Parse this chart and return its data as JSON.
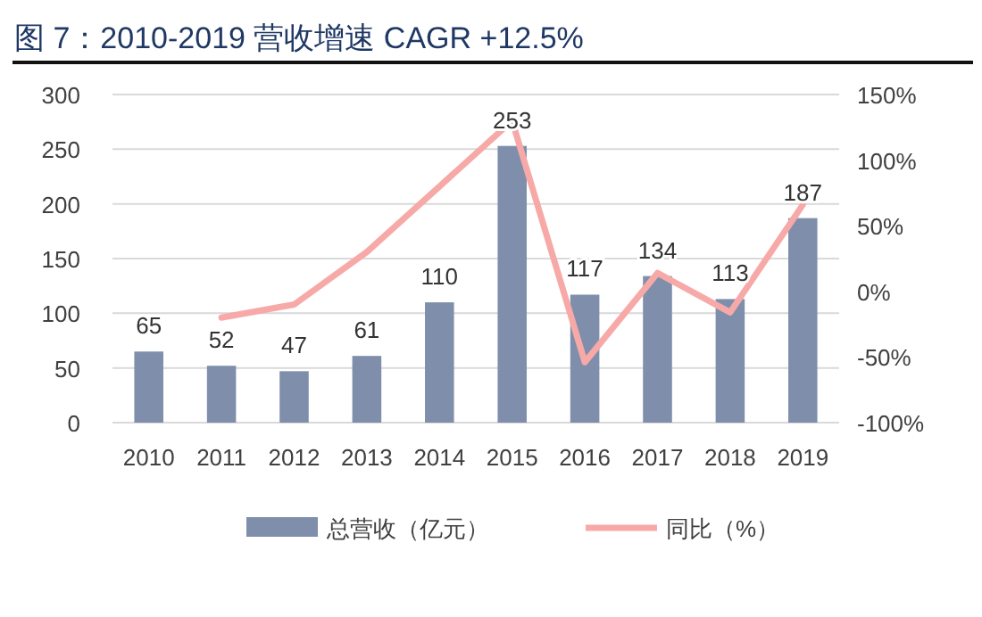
{
  "chart_data": {
    "type": "bar",
    "title": "图  7：2010-2019 营收增速  CAGR +12.5%",
    "categories": [
      "2010",
      "2011",
      "2012",
      "2013",
      "2014",
      "2015",
      "2016",
      "2017",
      "2018",
      "2019"
    ],
    "series": [
      {
        "name": "总营收（亿元）",
        "color": "#7f8fab",
        "values": [
          65,
          52,
          47,
          61,
          110,
          253,
          117,
          134,
          113,
          187
        ],
        "value_labels": [
          "65",
          "52",
          "47",
          "61",
          "110",
          "253",
          "117",
          "134",
          "113",
          "187"
        ]
      },
      {
        "name": "同比（%）",
        "type": "line",
        "axis": "y2",
        "color": "#f7a9a8",
        "values": [
          null,
          -20,
          -10,
          30,
          80,
          130,
          -54,
          14,
          -16,
          66
        ]
      }
    ],
    "ylim": [
      0,
      300
    ],
    "yticks": [
      0,
      50,
      100,
      150,
      200,
      250,
      300
    ],
    "y2lim": [
      -100,
      150
    ],
    "y2ticks": [
      {
        "value": -100,
        "label": "-100%"
      },
      {
        "value": -50,
        "label": "-50%"
      },
      {
        "value": 0,
        "label": "0%"
      },
      {
        "value": 50,
        "label": "50%"
      },
      {
        "value": 100,
        "label": "100%"
      },
      {
        "value": 150,
        "label": "150%"
      }
    ],
    "grid": "y",
    "legend": "bottom"
  }
}
